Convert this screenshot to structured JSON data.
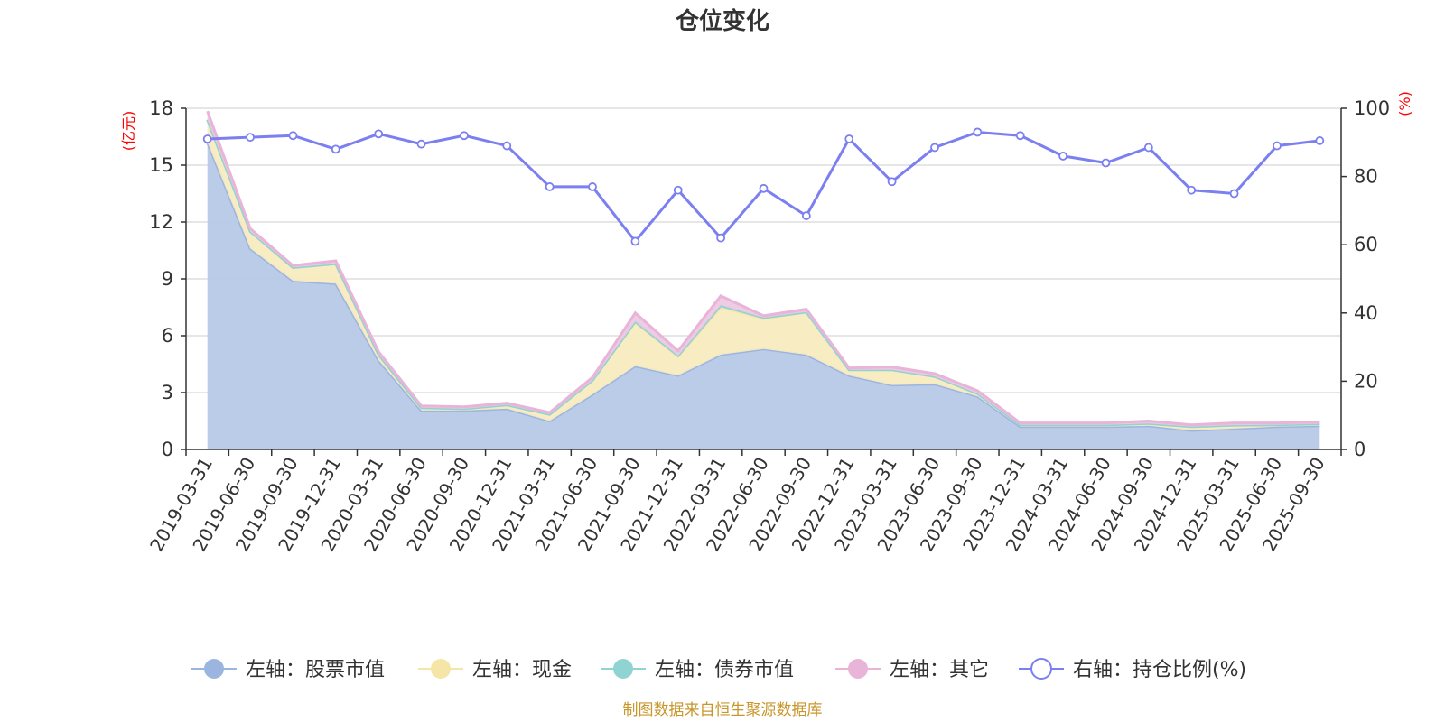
{
  "chart_data": {
    "type": "area",
    "title": "仓位变化",
    "left_axis_unit": "(亿元)",
    "right_axis_unit": "(%)",
    "source": "制图数据来自恒生聚源数据库",
    "left_axis": {
      "min": 0,
      "max": 18,
      "ticks": [
        0,
        3,
        6,
        9,
        12,
        15,
        18
      ]
    },
    "right_axis": {
      "min": 0,
      "max": 100,
      "ticks": [
        0,
        20,
        40,
        60,
        80,
        100
      ]
    },
    "grid": true,
    "legend_position": "bottom",
    "x_tick_labels": [
      "2019-03-31",
      "2019-06-30",
      "2019-09-30",
      "2019-12-31",
      "2020-03-31",
      "2020-06-30",
      "2020-09-30",
      "2020-12-31",
      "2021-03-31",
      "2021-06-30",
      "2021-09-30",
      "2021-12-31",
      "2022-03-31",
      "2022-06-30",
      "2022-09-30",
      "2022-12-31",
      "2023-03-31",
      "2023-06-30",
      "2023-09-30",
      "2023-12-31",
      "2024-03-31",
      "2024-06-30",
      "2024-09-30",
      "2024-12-31",
      "2025-03-31",
      "2025-06-30",
      "2025-09-30"
    ],
    "series": [
      {
        "name": "左轴：股票市值",
        "axis": "left",
        "kind": "stacked-area",
        "color": "#9bb5e0",
        "fill": "#b7c9e8",
        "values": [
          16.2,
          10.6,
          8.9,
          8.75,
          4.7,
          2.05,
          2.05,
          2.15,
          1.5,
          2.9,
          4.4,
          3.9,
          5.0,
          5.3,
          5.0,
          3.9,
          3.4,
          3.45,
          2.8,
          1.2,
          1.2,
          1.2,
          1.25,
          1.0,
          1.1,
          1.2,
          1.25
        ]
      },
      {
        "name": "左轴：现金",
        "axis": "left",
        "kind": "stacked-area",
        "color": "#f5e6a8",
        "fill": "#f8ebc0",
        "values": [
          1.2,
          0.9,
          0.7,
          1.05,
          0.3,
          0.15,
          0.1,
          0.2,
          0.35,
          0.75,
          2.3,
          1.0,
          2.5,
          1.6,
          2.25,
          0.3,
          0.8,
          0.4,
          0.15,
          0.1,
          0.1,
          0.1,
          0.12,
          0.2,
          0.18,
          0.1,
          0.1
        ]
      },
      {
        "name": "左轴：债券市值",
        "axis": "left",
        "kind": "stacked-area",
        "color": "#8fd3d3",
        "fill": "#a9dfdf",
        "values": [
          0,
          0,
          0,
          0,
          0,
          0,
          0,
          0,
          0,
          0,
          0.05,
          0.05,
          0.1,
          0.05,
          0,
          0,
          0,
          0,
          0,
          0,
          0,
          0,
          0,
          0,
          0,
          0,
          0
        ]
      },
      {
        "name": "左轴：其它",
        "axis": "left",
        "kind": "stacked-area",
        "color": "#e8b4d8",
        "fill": "#efc8e3",
        "values": [
          0.45,
          0.15,
          0.1,
          0.15,
          0.15,
          0.1,
          0.1,
          0.1,
          0.1,
          0.15,
          0.45,
          0.25,
          0.5,
          0.1,
          0.15,
          0.1,
          0.15,
          0.15,
          0.15,
          0.1,
          0.1,
          0.1,
          0.13,
          0.1,
          0.12,
          0.1,
          0.1
        ]
      },
      {
        "name": "右轴：持仓比例(%)",
        "axis": "right",
        "kind": "line",
        "color": "#7b7ff0",
        "values": [
          91,
          91.5,
          92,
          88,
          92.5,
          89.5,
          92,
          89,
          77,
          77,
          61,
          76,
          62,
          76.5,
          68.5,
          91,
          78.5,
          88.5,
          93,
          92,
          86,
          84,
          88.5,
          76,
          75,
          89,
          90.5
        ]
      }
    ]
  }
}
